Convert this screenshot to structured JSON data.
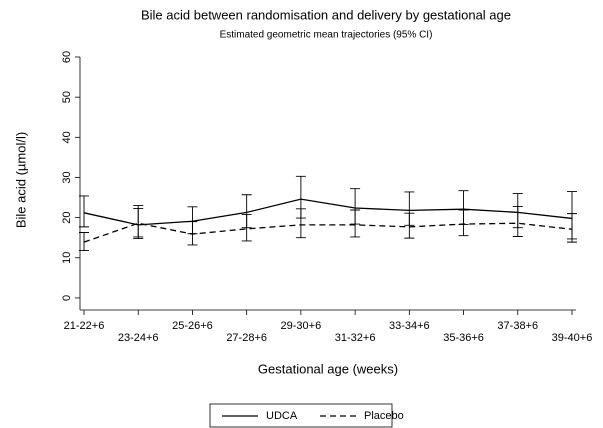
{
  "chart_data": {
    "type": "line",
    "title": "Bile acid between randomisation and delivery by gestational age",
    "subtitle": "Estimated geometric mean trajectories (95% CI)",
    "x_label": "Gestational age (weeks)",
    "y_label": "Bile acid (µmol/l)",
    "categories": [
      "21-22+6",
      "23-24+6",
      "25-26+6",
      "27-28+6",
      "29-30+6",
      "31-32+6",
      "33-34+6",
      "35-36+6",
      "37-38+6",
      "39-40+6"
    ],
    "series": [
      {
        "name": "UDCA",
        "color": "#000000",
        "line_style": "solid",
        "values": [
          21.2,
          18.2,
          19.1,
          21.3,
          24.6,
          22.4,
          21.8,
          22.1,
          21.3,
          19.8
        ],
        "lower": [
          17.7,
          14.8,
          16.0,
          17.5,
          19.9,
          18.4,
          18.1,
          18.3,
          17.5,
          14.7
        ],
        "upper": [
          25.4,
          22.3,
          22.7,
          25.7,
          30.3,
          27.2,
          26.4,
          26.7,
          26.0,
          26.5
        ]
      },
      {
        "name": "Placebo",
        "color": "#000000",
        "line_style": "dashed",
        "values": [
          13.9,
          18.6,
          15.9,
          17.2,
          18.2,
          18.2,
          17.7,
          18.4,
          18.6,
          17.1
        ],
        "lower": [
          11.8,
          15.2,
          13.2,
          14.2,
          15.0,
          15.2,
          14.9,
          15.5,
          15.3,
          13.9
        ],
        "upper": [
          16.3,
          23.0,
          19.0,
          20.8,
          22.2,
          21.9,
          21.1,
          21.9,
          22.8,
          21.0
        ]
      }
    ],
    "ylim": [
      -3,
      60
    ],
    "yticks": [
      0,
      10,
      20,
      30,
      40,
      50,
      60
    ],
    "grid": false,
    "legend": "bottom"
  }
}
